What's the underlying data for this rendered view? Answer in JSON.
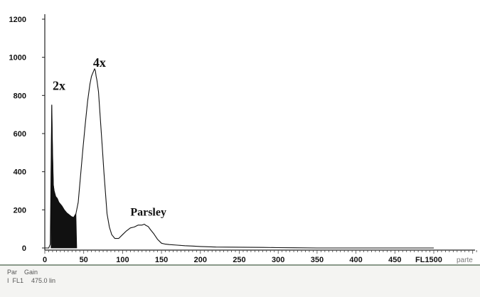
{
  "chart_data": {
    "type": "area",
    "xlim": [
      0,
      575
    ],
    "ylim": [
      0,
      1200
    ],
    "x_ticks": [
      0,
      50,
      100,
      150,
      200,
      250,
      300,
      350,
      400,
      450,
      500
    ],
    "x_tick_labels": [
      "0",
      "50",
      "100",
      "150",
      "200",
      "250",
      "300",
      "350",
      "400",
      "450",
      "FL1500"
    ],
    "x_extra_label": "parte",
    "y_ticks": [
      0,
      200,
      400,
      600,
      800,
      1000,
      1200
    ],
    "y_tick_labels": [
      "0",
      "200",
      "400",
      "600",
      "800",
      "1000",
      "1200"
    ],
    "annotations": [
      {
        "text": "2x",
        "x": 10,
        "y": 830,
        "size": 18
      },
      {
        "text": "4x",
        "x": 62,
        "y": 950,
        "size": 18
      },
      {
        "text": "Parsley",
        "x": 110,
        "y": 170,
        "size": 16
      }
    ],
    "gate": {
      "x_start": 8,
      "x_end": 41
    },
    "series": [
      {
        "x": [
          0,
          5,
          7,
          8,
          9,
          10,
          11,
          12,
          14,
          16,
          18,
          20,
          22,
          25,
          28,
          31,
          34,
          37,
          40,
          43,
          46,
          49,
          52,
          55,
          58,
          60,
          62,
          64,
          65,
          66,
          67,
          68,
          69,
          70,
          72,
          74,
          76,
          78,
          80,
          83,
          86,
          90,
          95,
          100,
          105,
          110,
          115,
          120,
          125,
          128,
          130,
          133,
          136,
          140,
          145,
          150,
          155,
          160,
          170,
          180,
          190,
          200,
          220,
          250,
          280,
          300,
          320,
          350,
          400,
          450,
          500
        ],
        "y": [
          0,
          0,
          20,
          400,
          750,
          500,
          330,
          300,
          270,
          260,
          240,
          230,
          220,
          200,
          185,
          175,
          165,
          160,
          180,
          240,
          380,
          520,
          650,
          770,
          860,
          900,
          920,
          940,
          930,
          900,
          880,
          850,
          820,
          760,
          640,
          520,
          400,
          290,
          180,
          110,
          70,
          50,
          50,
          70,
          90,
          105,
          110,
          120,
          120,
          125,
          118,
          112,
          95,
          75,
          45,
          25,
          20,
          18,
          15,
          12,
          10,
          8,
          5,
          4,
          3,
          2,
          1,
          0,
          0,
          0,
          0
        ]
      }
    ]
  },
  "footer": {
    "par_label": "Par",
    "gain_label": "Gain",
    "par_value": "I  FL1",
    "gain_value": "475.0 lin"
  }
}
